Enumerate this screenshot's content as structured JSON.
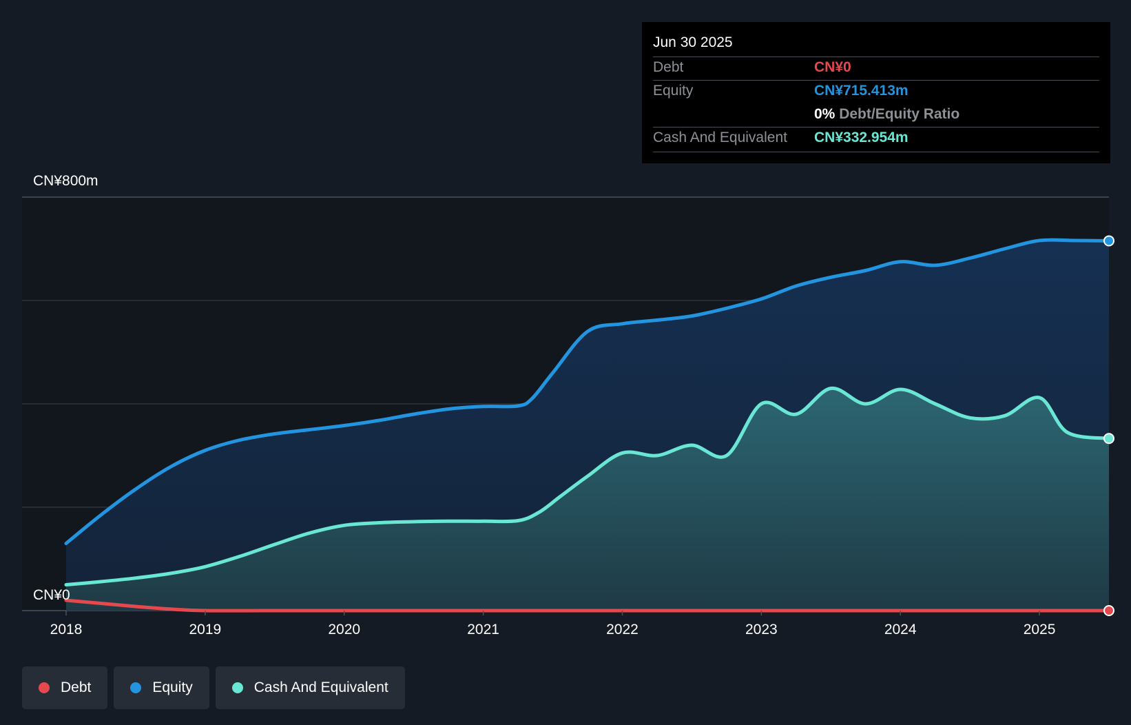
{
  "tooltip": {
    "date": "Jun 30 2025",
    "debt_label": "Debt",
    "debt_value": "CN¥0",
    "equity_label": "Equity",
    "equity_value": "CN¥715.413m",
    "ratio_pct": "0%",
    "ratio_label": "Debt/Equity Ratio",
    "cash_label": "Cash And Equivalent",
    "cash_value": "CN¥332.954m"
  },
  "colors": {
    "debt": "#e5484d",
    "equity": "#2394df",
    "cash": "#6ae7d4",
    "background": "#151b24"
  },
  "legend": [
    {
      "name": "Debt",
      "color": "#e5484d"
    },
    {
      "name": "Equity",
      "color": "#2394df"
    },
    {
      "name": "Cash And Equivalent",
      "color": "#6ae7d4"
    }
  ],
  "chart_data": {
    "type": "area",
    "y_top_label": "CN¥800m",
    "y_bottom_label": "CN¥0",
    "ylim": [
      0,
      800
    ],
    "xlim": [
      2018.0,
      2025.5
    ],
    "x_ticks": [
      "2018",
      "2019",
      "2020",
      "2021",
      "2022",
      "2023",
      "2024",
      "2025"
    ],
    "grid": true,
    "legend_position": "bottom-left",
    "series": [
      {
        "name": "Equity",
        "x": [
          2018.0,
          2018.25,
          2018.5,
          2018.75,
          2019.0,
          2019.25,
          2019.5,
          2019.75,
          2020.0,
          2020.25,
          2020.5,
          2020.75,
          2021.0,
          2021.25,
          2021.35,
          2021.5,
          2021.75,
          2022.0,
          2022.25,
          2022.5,
          2022.75,
          2023.0,
          2023.25,
          2023.5,
          2023.75,
          2024.0,
          2024.25,
          2024.5,
          2024.75,
          2025.0,
          2025.25,
          2025.5
        ],
        "values": [
          130,
          185,
          235,
          278,
          310,
          330,
          342,
          350,
          358,
          368,
          380,
          390,
          395,
          396,
          410,
          460,
          540,
          555,
          562,
          570,
          585,
          603,
          628,
          645,
          658,
          675,
          668,
          682,
          700,
          716,
          716,
          715.4
        ]
      },
      {
        "name": "Cash And Equivalent",
        "x": [
          2018.0,
          2018.25,
          2018.5,
          2018.75,
          2019.0,
          2019.25,
          2019.5,
          2019.75,
          2020.0,
          2020.25,
          2020.5,
          2020.75,
          2021.0,
          2021.25,
          2021.4,
          2021.55,
          2021.75,
          2022.0,
          2022.25,
          2022.5,
          2022.75,
          2023.0,
          2023.25,
          2023.5,
          2023.75,
          2024.0,
          2024.25,
          2024.5,
          2024.75,
          2025.0,
          2025.2,
          2025.5
        ],
        "values": [
          50,
          56,
          63,
          72,
          85,
          105,
          128,
          150,
          165,
          170,
          172,
          173,
          173,
          174,
          190,
          220,
          260,
          305,
          300,
          320,
          300,
          400,
          380,
          430,
          400,
          428,
          400,
          373,
          377,
          412,
          345,
          333
        ]
      },
      {
        "name": "Debt",
        "x": [
          2018.0,
          2018.25,
          2018.5,
          2018.75,
          2019.0,
          2019.5,
          2020.0,
          2021.0,
          2022.0,
          2023.0,
          2024.0,
          2025.0,
          2025.5
        ],
        "values": [
          20,
          14,
          8,
          3,
          0,
          0,
          0,
          0,
          0,
          0,
          0,
          0,
          0
        ]
      }
    ]
  }
}
